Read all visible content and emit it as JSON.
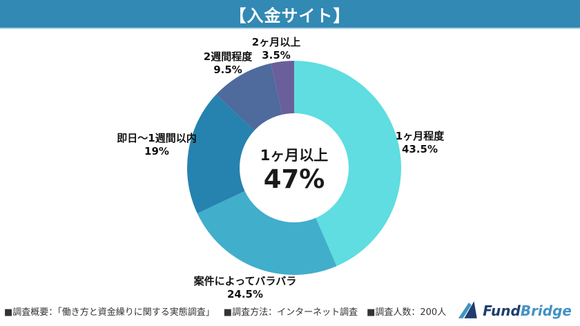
{
  "header": {
    "title": "【入金サイト】",
    "banner_color": "#3289B4"
  },
  "chart_data": {
    "type": "pie",
    "title": "入金サイト",
    "donut": true,
    "direction": "clockwise",
    "start_angle_deg": 0,
    "legend_position": "outside-labels",
    "center": {
      "label": "1ヶ月以上",
      "value_label": "47%"
    },
    "slices": [
      {
        "label": "1ヶ月程度",
        "value": 43.5,
        "pct_label": "43.5%",
        "color": "#5FDDE0"
      },
      {
        "label": "案件によってバラバラ",
        "value": 24.5,
        "pct_label": "24.5%",
        "color": "#41AECB"
      },
      {
        "label": "即日〜1週間以内",
        "value": 19,
        "pct_label": "19%",
        "color": "#2682AE"
      },
      {
        "label": "2週間程度",
        "value": 9.5,
        "pct_label": "9.5%",
        "color": "#4F6A9D"
      },
      {
        "label": "2ヶ月以上",
        "value": 3.5,
        "pct_label": "3.5%",
        "color": "#6A5F9B"
      }
    ]
  },
  "footer": {
    "notes": [
      "■調査概要：「働き方と資金繰りに関する実態調査」",
      "■調査方法：インターネット調査",
      "■調査人数：200人"
    ]
  },
  "brand": {
    "name_primary": "Fund",
    "name_secondary": "Bridge",
    "color_primary": "#1D3E6E",
    "color_secondary": "#4292C4"
  }
}
